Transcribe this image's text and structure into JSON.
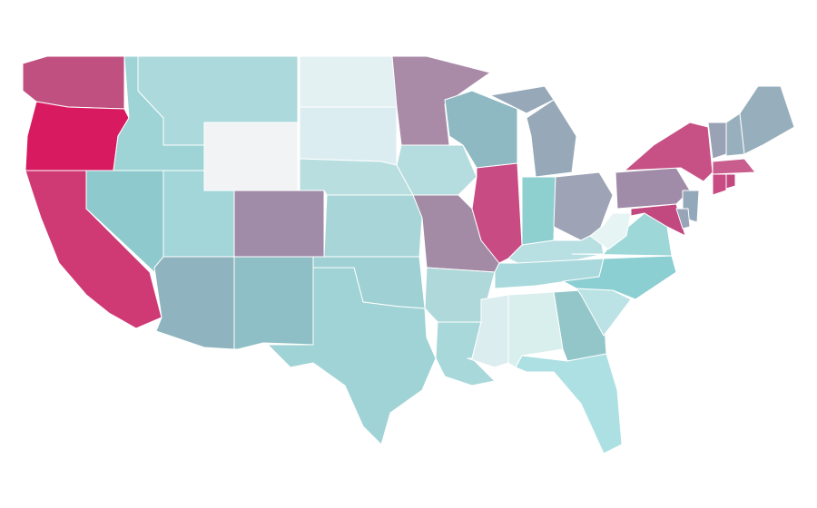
{
  "map": {
    "regions": [
      {
        "color": "#c0507f"
      },
      {
        "color": "#d81b60"
      },
      {
        "color": "#cf3a75"
      },
      {
        "color": "#8ecacd"
      },
      {
        "color": "#9ed4d6"
      },
      {
        "color": "#acd9db"
      },
      {
        "color": "#f2f3f5"
      },
      {
        "color": "#a3d6d8"
      },
      {
        "color": "#8fb4bf"
      },
      {
        "color": "#a08ba9"
      },
      {
        "color": "#8fbfc6"
      },
      {
        "color": "#e3f1f3"
      },
      {
        "color": "#dcedf1"
      },
      {
        "color": "#b9dee0"
      },
      {
        "color": "#a8d6d8"
      },
      {
        "color": "#9fd1d4"
      },
      {
        "color": "#9fd3d5"
      },
      {
        "color": "#a98ba8"
      },
      {
        "color": "#b5dcde"
      },
      {
        "color": "#a38ba6"
      },
      {
        "color": "#afd8da"
      },
      {
        "color": "#a8d8da"
      },
      {
        "color": "#8fb9c2"
      },
      {
        "color": "#c94b83"
      },
      {
        "color": "#97a9b9"
      },
      {
        "color": "#8ecfd0"
      },
      {
        "color": "#9ea3b6"
      },
      {
        "color": "#b8dfe2"
      },
      {
        "color": "#a9d9dc"
      },
      {
        "color": "#dcedf0"
      },
      {
        "color": "#d9efed"
      },
      {
        "color": "#92c6c9"
      },
      {
        "color": "#ade0e2"
      },
      {
        "color": "#bbe2e4"
      },
      {
        "color": "#8ccfd2"
      },
      {
        "color": "#9ed7d8"
      },
      {
        "color": "#e7f4f4"
      },
      {
        "color": "#a08ca8"
      },
      {
        "color": "#c75185"
      },
      {
        "color": "#94a8bb"
      },
      {
        "color": "#c24880"
      },
      {
        "color": "#98a5b8"
      },
      {
        "color": "#9aa2b6"
      },
      {
        "color": "#98b0be"
      },
      {
        "color": "#97aebd"
      },
      {
        "color": "#c95d8e"
      },
      {
        "color": "#c94b83"
      },
      {
        "color": "#c24880"
      }
    ]
  }
}
